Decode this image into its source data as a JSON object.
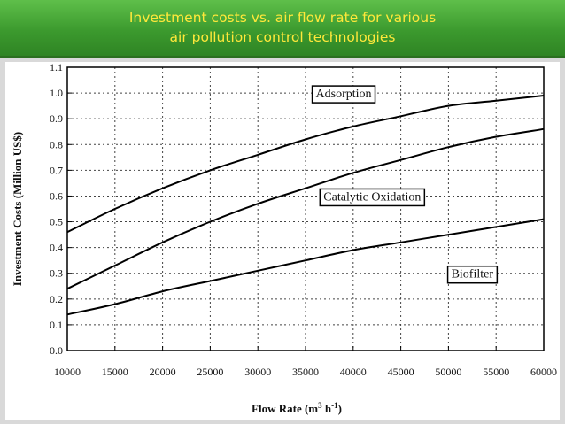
{
  "header": {
    "title": "Investment costs vs. air flow rate for various\nair pollution control technologies"
  },
  "colors": {
    "banner": "#3c9a2e",
    "title_text": "#ffe83a",
    "curve": "#000000"
  },
  "chart_data": {
    "type": "line",
    "title": "",
    "xlabel": "Flow Rate (m3 h-1)",
    "xlabel_main": "Flow Rate (m",
    "xlabel_sup1": "3",
    "xlabel_mid": " h",
    "xlabel_sup2": "-1",
    "xlabel_end": ")",
    "ylabel": "Investment Costs (Million US$)",
    "xlim": [
      10000,
      60000
    ],
    "ylim": [
      0.0,
      1.1
    ],
    "x_ticks": [
      "10000",
      "15000",
      "20000",
      "25000",
      "30000",
      "35000",
      "40000",
      "45000",
      "50000",
      "55000",
      "60000"
    ],
    "y_ticks": [
      "0.0",
      "0.1",
      "0.2",
      "0.3",
      "0.4",
      "0.5",
      "0.6",
      "0.7",
      "0.8",
      "0.9",
      "1.0",
      "1.1"
    ],
    "grid": true,
    "x": [
      10000,
      15000,
      20000,
      25000,
      30000,
      35000,
      40000,
      45000,
      50000,
      55000,
      60000
    ],
    "series": [
      {
        "name": "Adsorption",
        "values": [
          0.46,
          0.55,
          0.63,
          0.7,
          0.76,
          0.82,
          0.87,
          0.91,
          0.95,
          0.97,
          0.99
        ]
      },
      {
        "name": "Catalytic Oxidation",
        "values": [
          0.24,
          0.33,
          0.42,
          0.5,
          0.57,
          0.63,
          0.69,
          0.74,
          0.79,
          0.83,
          0.86
        ]
      },
      {
        "name": "Biofilter",
        "values": [
          0.14,
          0.18,
          0.23,
          0.27,
          0.31,
          0.35,
          0.39,
          0.42,
          0.45,
          0.48,
          0.51
        ]
      }
    ],
    "annotations": [
      {
        "text": "Adsorption",
        "x": 39000,
        "y": 1.0
      },
      {
        "text": "Catalytic Oxidation",
        "x": 42000,
        "y": 0.6
      },
      {
        "text": "Biofilter",
        "x": 52500,
        "y": 0.3
      }
    ]
  }
}
